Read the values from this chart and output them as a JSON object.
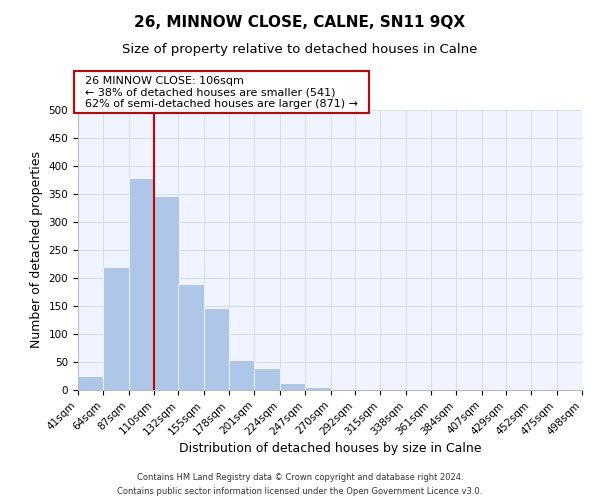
{
  "title": "26, MINNOW CLOSE, CALNE, SN11 9QX",
  "subtitle": "Size of property relative to detached houses in Calne",
  "xlabel": "Distribution of detached houses by size in Calne",
  "ylabel": "Number of detached properties",
  "bin_edges": [
    41,
    64,
    87,
    110,
    132,
    155,
    178,
    201,
    224,
    247,
    270,
    292,
    315,
    338,
    361,
    384,
    407,
    429,
    452,
    475,
    498
  ],
  "bin_labels": [
    "41sqm",
    "64sqm",
    "87sqm",
    "110sqm",
    "132sqm",
    "155sqm",
    "178sqm",
    "201sqm",
    "224sqm",
    "247sqm",
    "270sqm",
    "292sqm",
    "315sqm",
    "338sqm",
    "361sqm",
    "384sqm",
    "407sqm",
    "429sqm",
    "452sqm",
    "475sqm",
    "498sqm"
  ],
  "counts": [
    25,
    220,
    378,
    347,
    190,
    146,
    53,
    40,
    13,
    6,
    0,
    0,
    0,
    0,
    0,
    1,
    0,
    0,
    0,
    2
  ],
  "bar_color": "#aec6e8",
  "vline_x": 110,
  "vline_color": "#cc0000",
  "ylim": [
    0,
    500
  ],
  "yticks": [
    0,
    50,
    100,
    150,
    200,
    250,
    300,
    350,
    400,
    450,
    500
  ],
  "annotation_title": "26 MINNOW CLOSE: 106sqm",
  "annotation_line1": "← 38% of detached houses are smaller (541)",
  "annotation_line2": "62% of semi-detached houses are larger (871) →",
  "footer_line1": "Contains HM Land Registry data © Crown copyright and database right 2024.",
  "footer_line2": "Contains public sector information licensed under the Open Government Licence v3.0.",
  "title_fontsize": 11,
  "subtitle_fontsize": 9.5,
  "axis_label_fontsize": 9,
  "tick_fontsize": 7.5,
  "annotation_fontsize": 8,
  "footer_fontsize": 6
}
